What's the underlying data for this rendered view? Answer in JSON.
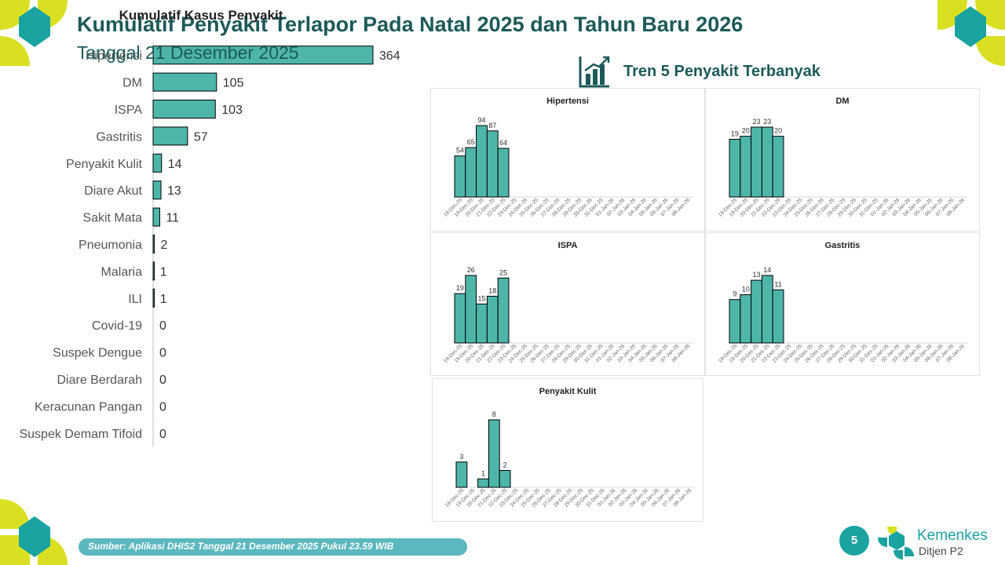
{
  "header": {
    "title": "Kumulatif Penyakit Terlapor Pada Natal 2025 dan Tahun Baru 2026",
    "subtitle": "Tanggal 21 Desember 2025"
  },
  "trend_header": {
    "title": "Tren 5 Penyakit Terbanyak",
    "icon": "bar-chart-trend-icon"
  },
  "footer": {
    "source": "Sumber: Aplikasi DHIS2 Tanggal 21 Desember 2025 Pukul 23.59 WIB",
    "page_number": "5",
    "logo_name": "Kemenkes",
    "logo_sub": "Ditjen P2"
  },
  "colors": {
    "bar": "#4db6a9",
    "title": "#1c5a58",
    "accent": "#1aa3a0",
    "source_bar": "#5bb8be",
    "corner_yellow": "#d9e021",
    "corner_teal": "#1aa3a0"
  },
  "chart_data": [
    {
      "type": "bar",
      "orientation": "horizontal",
      "title": "Kumulatif Kasus Penyakit",
      "categories": [
        "Hipertensi",
        "DM",
        "ISPA",
        "Gastritis",
        "Penyakit Kulit",
        "Diare Akut",
        "Sakit Mata",
        "Pneumonia",
        "Malaria",
        "ILI",
        "Covid-19",
        "Suspek Dengue",
        "Diare Berdarah",
        "Keracunan Pangan",
        "Suspek Demam Tifoid"
      ],
      "values": [
        364,
        105,
        103,
        57,
        14,
        13,
        11,
        2,
        1,
        1,
        0,
        0,
        0,
        0,
        0
      ],
      "data_labels": true,
      "grid": false
    },
    {
      "type": "bar",
      "title": "Hipertensi",
      "categories": [
        "18-Dec-25",
        "19-Dec-25",
        "20-Dec-25",
        "21-Dec-25",
        "22-Dec-25",
        "23-Dec-25",
        "24-Dec-25",
        "25-Dec-25",
        "26-Dec-25",
        "27-Dec-25",
        "28-Dec-25",
        "29-Dec-25",
        "30-Dec-25",
        "31-Dec-25",
        "01-Jan-26",
        "02-Jan-26",
        "03-Jan-26",
        "04-Jan-26",
        "05-Jan-26",
        "06-Jan-26",
        "07-Jan-26",
        "08-Jan-26"
      ],
      "values": [
        54,
        65,
        94,
        87,
        64,
        null,
        null,
        null,
        null,
        null,
        null,
        null,
        null,
        null,
        null,
        null,
        null,
        null,
        null,
        null,
        null,
        null
      ]
    },
    {
      "type": "bar",
      "title": "DM",
      "categories": [
        "18-Dec-25",
        "19-Dec-25",
        "20-Dec-25",
        "21-Dec-25",
        "22-Dec-25",
        "23-Dec-25",
        "24-Dec-25",
        "25-Dec-25",
        "26-Dec-25",
        "27-Dec-25",
        "28-Dec-25",
        "29-Dec-25",
        "30-Dec-25",
        "31-Dec-25",
        "01-Jan-26",
        "02-Jan-26",
        "03-Jan-26",
        "04-Jan-26",
        "05-Jan-26",
        "06-Jan-26",
        "07-Jan-26",
        "08-Jan-26"
      ],
      "values": [
        19,
        20,
        23,
        23,
        20,
        null,
        null,
        null,
        null,
        null,
        null,
        null,
        null,
        null,
        null,
        null,
        null,
        null,
        null,
        null,
        null,
        null
      ]
    },
    {
      "type": "bar",
      "title": "ISPA",
      "categories": [
        "18-Dec-25",
        "19-Dec-25",
        "20-Dec-25",
        "21-Dec-25",
        "22-Dec-25",
        "23-Dec-25",
        "24-Dec-25",
        "25-Dec-25",
        "26-Dec-25",
        "27-Dec-25",
        "28-Dec-25",
        "29-Dec-25",
        "30-Dec-25",
        "31-Dec-25",
        "01-Jan-26",
        "02-Jan-26",
        "03-Jan-26",
        "04-Jan-26",
        "05-Jan-26",
        "06-Jan-26",
        "07-Jan-26",
        "08-Jan-26"
      ],
      "values": [
        19,
        26,
        15,
        18,
        25,
        null,
        null,
        null,
        null,
        null,
        null,
        null,
        null,
        null,
        null,
        null,
        null,
        null,
        null,
        null,
        null,
        null
      ]
    },
    {
      "type": "bar",
      "title": "Gastritis",
      "categories": [
        "18-Dec-25",
        "19-Dec-25",
        "20-Dec-25",
        "21-Dec-25",
        "22-Dec-25",
        "23-Dec-25",
        "24-Dec-25",
        "25-Dec-25",
        "26-Dec-25",
        "27-Dec-25",
        "28-Dec-25",
        "29-Dec-25",
        "30-Dec-25",
        "31-Dec-25",
        "01-Jan-26",
        "02-Jan-26",
        "03-Jan-26",
        "04-Jan-26",
        "05-Jan-26",
        "06-Jan-26",
        "07-Jan-26",
        "08-Jan-26"
      ],
      "values": [
        9,
        10,
        13,
        14,
        11,
        null,
        null,
        null,
        null,
        null,
        null,
        null,
        null,
        null,
        null,
        null,
        null,
        null,
        null,
        null,
        null,
        null
      ]
    },
    {
      "type": "bar",
      "title": "Penyakit Kulit",
      "categories": [
        "18-Dec-25",
        "19-Dec-25",
        "20-Dec-25",
        "21-Dec-25",
        "22-Dec-25",
        "23-Dec-25",
        "24-Dec-25",
        "25-Dec-25",
        "26-Dec-25",
        "27-Dec-25",
        "28-Dec-25",
        "29-Dec-25",
        "30-Dec-25",
        "31-Dec-25",
        "01-Jan-26",
        "02-Jan-26",
        "03-Jan-26",
        "04-Jan-26",
        "05-Jan-26",
        "06-Jan-26",
        "07-Jan-26",
        "08-Jan-26"
      ],
      "values": [
        3,
        null,
        1,
        8,
        2,
        null,
        null,
        null,
        null,
        null,
        null,
        null,
        null,
        null,
        null,
        null,
        null,
        null,
        null,
        null,
        null,
        null
      ]
    }
  ]
}
